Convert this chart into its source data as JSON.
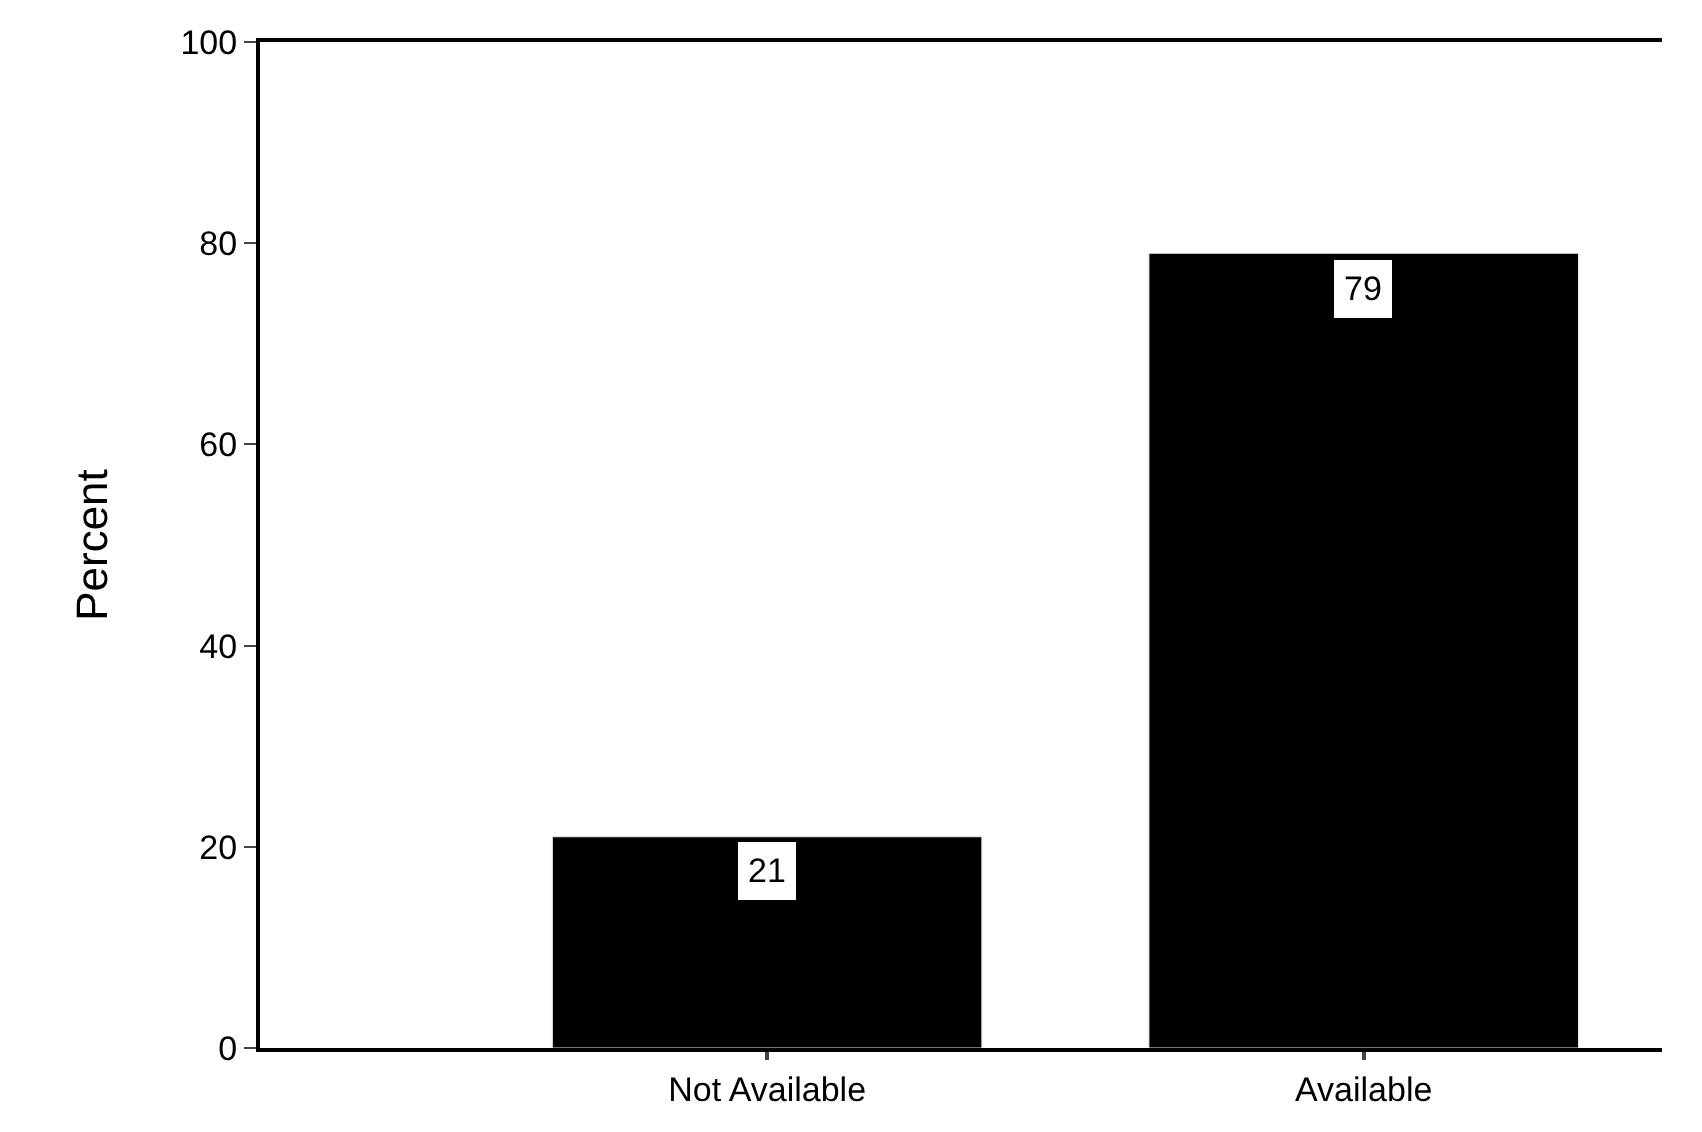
{
  "chart_data": {
    "type": "bar",
    "ylabel": "Percent",
    "categories": [
      "Not Available",
      "Available"
    ],
    "values": [
      21,
      79
    ],
    "color": "#000000",
    "ylim": [
      0,
      100
    ],
    "yticks": [
      0,
      20,
      40,
      60,
      80,
      100
    ],
    "data_labels": true,
    "legend": false
  }
}
